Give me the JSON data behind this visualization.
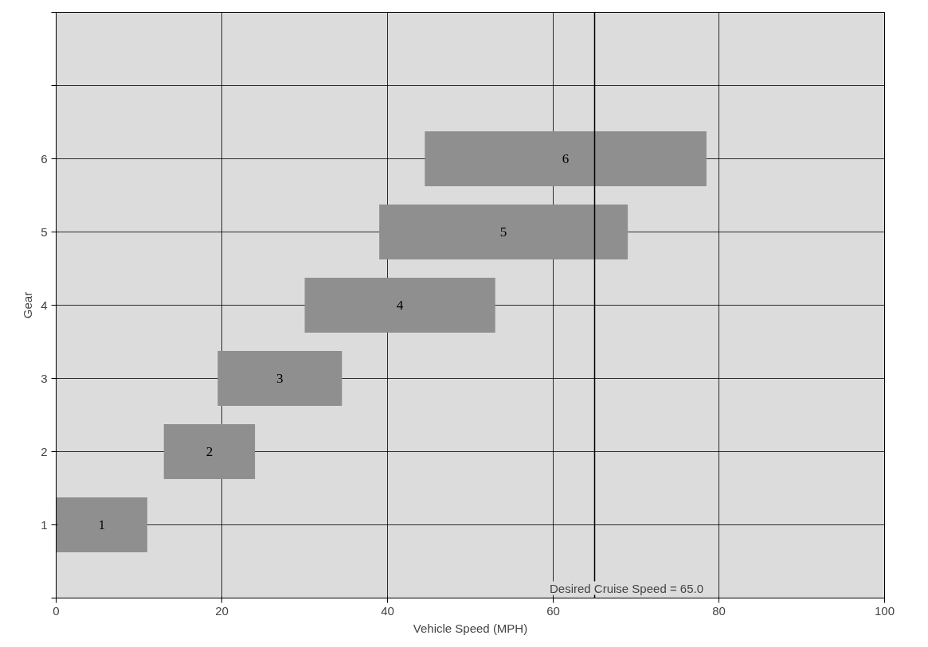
{
  "chart_data": {
    "type": "bar",
    "orientation": "horizontal",
    "xlabel": "Vehicle Speed (MPH)",
    "ylabel": "Gear",
    "x": [
      1,
      2,
      3,
      4,
      5,
      6
    ],
    "base": [
      0,
      13,
      19.5,
      30,
      39,
      44.5
    ],
    "values": [
      11,
      11,
      15,
      23,
      30,
      34
    ],
    "annotations": [
      "1",
      "2",
      "3",
      "4",
      "5",
      "6"
    ],
    "color": "#8f8f8f",
    "xlim": [
      0,
      100
    ],
    "xticks": [
      0,
      20,
      40,
      60,
      80,
      100
    ],
    "ylim": [
      0,
      8
    ],
    "yticks": [
      {
        "value": 0,
        "label": null
      },
      1,
      2,
      3,
      4,
      5,
      6,
      {
        "value": 7,
        "label": null
      },
      {
        "value": 8,
        "label": null
      }
    ],
    "grid": true,
    "ref_lines": [
      {
        "axis": "x",
        "value": 65,
        "label": "Desired Cruise Speed = 65.0",
        "color": "#000000"
      }
    ]
  }
}
